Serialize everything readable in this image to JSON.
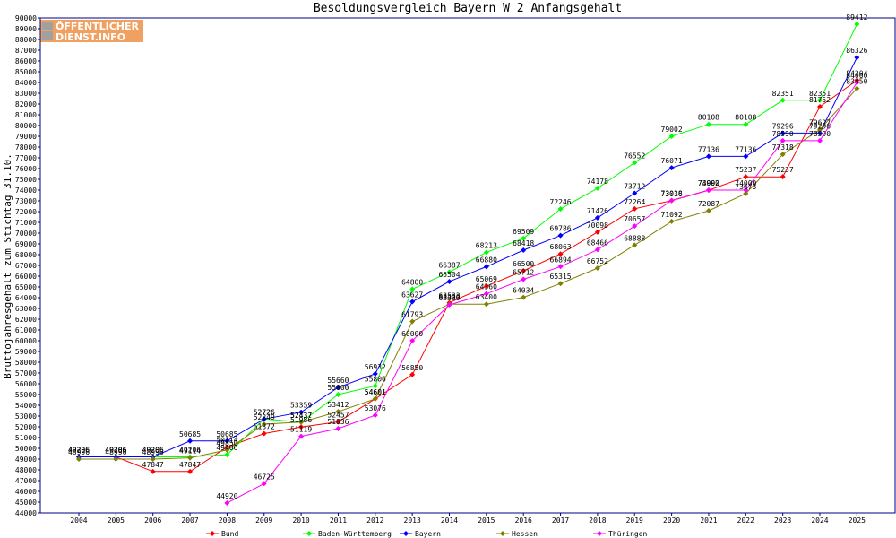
{
  "logo": {
    "line1": "ÖFFENTLICHER",
    "line2": "DIENST.INFO"
  },
  "chart_data": {
    "type": "line",
    "title": "Besoldungsvergleich Bayern W 2 Anfangsgehalt",
    "ylabel": "Bruttojahresgehalt zum Stichtag 31.10.",
    "xlabel": "",
    "x": [
      "2004",
      "2005",
      "2006",
      "2007",
      "2008",
      "2009",
      "2010",
      "2011",
      "2012",
      "2013",
      "2014",
      "2015",
      "2016",
      "2017",
      "2018",
      "2019",
      "2020",
      "2021",
      "2022",
      "2023",
      "2024",
      "2025"
    ],
    "ylim": [
      44000,
      90000
    ],
    "ytick_step": 1000,
    "grid": false,
    "legend_position": "bottom",
    "series": [
      {
        "name": "Bund",
        "color": "#ff0000",
        "values": [
          49206,
          49206,
          47847,
          47847,
          50114,
          51372,
          51986,
          52457,
          54601,
          56850,
          63533,
          65069,
          66500,
          68063,
          70098,
          72264,
          73016,
          73992,
          75237,
          75237,
          81752,
          84204
        ]
      },
      {
        "name": "Baden-Württemberg",
        "color": "#00ff00",
        "values": [
          49206,
          49206,
          49206,
          49206,
          49406,
          52726,
          52437,
          55000,
          55806,
          64800,
          66387,
          68213,
          69509,
          72246,
          74178,
          76552,
          79002,
          80108,
          80108,
          82351,
          82351,
          89412
        ]
      },
      {
        "name": "Bayern",
        "color": "#0000ff",
        "values": [
          49206,
          49206,
          49206,
          50685,
          50685,
          52726,
          53359,
          55660,
          56932,
          63627,
          65504,
          66880,
          68418,
          69786,
          71426,
          73712,
          76071,
          77136,
          77136,
          79296,
          79296,
          86326
        ]
      },
      {
        "name": "Hessen",
        "color": "#808000",
        "values": [
          48996,
          48996,
          48996,
          49114,
          49850,
          52249,
          52437,
          53412,
          54601,
          61793,
          63400,
          63400,
          64034,
          65315,
          66752,
          68888,
          71092,
          72087,
          73673,
          77318,
          79627,
          83450
        ]
      },
      {
        "name": "Thüringen",
        "color": "#ff00ff",
        "values": [
          null,
          null,
          null,
          null,
          44920,
          46725,
          51119,
          51836,
          53076,
          60000,
          63330,
          64360,
          65712,
          66894,
          68466,
          70657,
          73038,
          74000,
          74000,
          78590,
          78590,
          84000
        ]
      }
    ]
  }
}
